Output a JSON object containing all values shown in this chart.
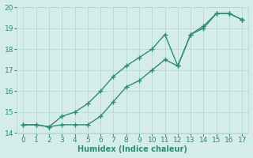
{
  "line1_x": [
    0,
    1,
    2,
    3,
    4,
    5,
    6,
    7,
    8,
    9,
    10,
    11,
    12,
    13,
    14,
    15,
    16,
    17
  ],
  "line1_y": [
    14.4,
    14.4,
    14.3,
    14.4,
    14.4,
    14.4,
    14.8,
    15.5,
    16.2,
    16.5,
    17.0,
    17.5,
    17.2,
    18.7,
    19.0,
    19.7,
    19.7,
    19.4
  ],
  "line2_x": [
    0,
    1,
    2,
    3,
    4,
    5,
    6,
    7,
    8,
    9,
    10,
    11,
    12,
    13,
    14,
    15,
    16,
    17
  ],
  "line2_y": [
    14.4,
    14.4,
    14.3,
    14.8,
    15.0,
    15.4,
    16.0,
    16.7,
    17.2,
    17.6,
    18.0,
    18.7,
    17.2,
    18.7,
    19.1,
    19.7,
    19.7,
    19.4
  ],
  "color": "#2e8b7a",
  "bg_color": "#d4ede9",
  "grid_color": "#b8d8d4",
  "xlabel": "Humidex (Indice chaleur)",
  "ylim": [
    14,
    20
  ],
  "xlim": [
    -0.5,
    17.5
  ],
  "yticks": [
    14,
    15,
    16,
    17,
    18,
    19,
    20
  ],
  "xticks": [
    0,
    1,
    2,
    3,
    4,
    5,
    6,
    7,
    8,
    9,
    10,
    11,
    12,
    13,
    14,
    15,
    16,
    17
  ],
  "marker": "+",
  "markersize": 5,
  "linewidth": 1.0,
  "font_size": 7.0,
  "tick_font_size": 6.5
}
